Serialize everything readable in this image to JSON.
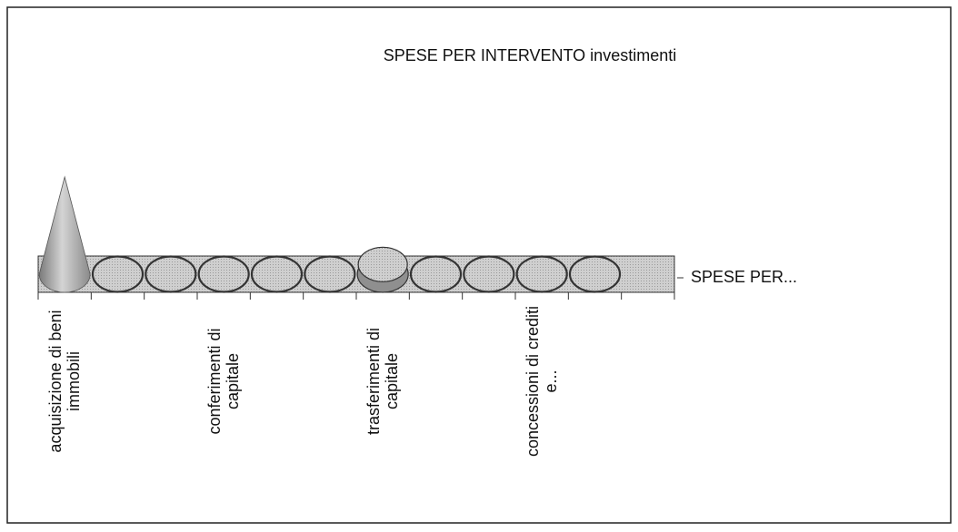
{
  "chart_data": {
    "type": "cone",
    "title": "SPESE PER INTERVENTO investimenti",
    "categories": [
      "acquisizione di beni immobili",
      null,
      null,
      "conferimenti di capitale",
      null,
      null,
      "trasferimenti di capitale",
      null,
      null,
      "concessioni di crediti e...",
      null,
      null
    ],
    "series": [
      {
        "name": "SPESE PER...",
        "color": "#a8a8a8",
        "values": [
          100,
          0,
          0,
          0,
          0,
          0,
          10,
          0,
          0,
          0,
          0,
          null
        ]
      }
    ],
    "legend": "right"
  }
}
